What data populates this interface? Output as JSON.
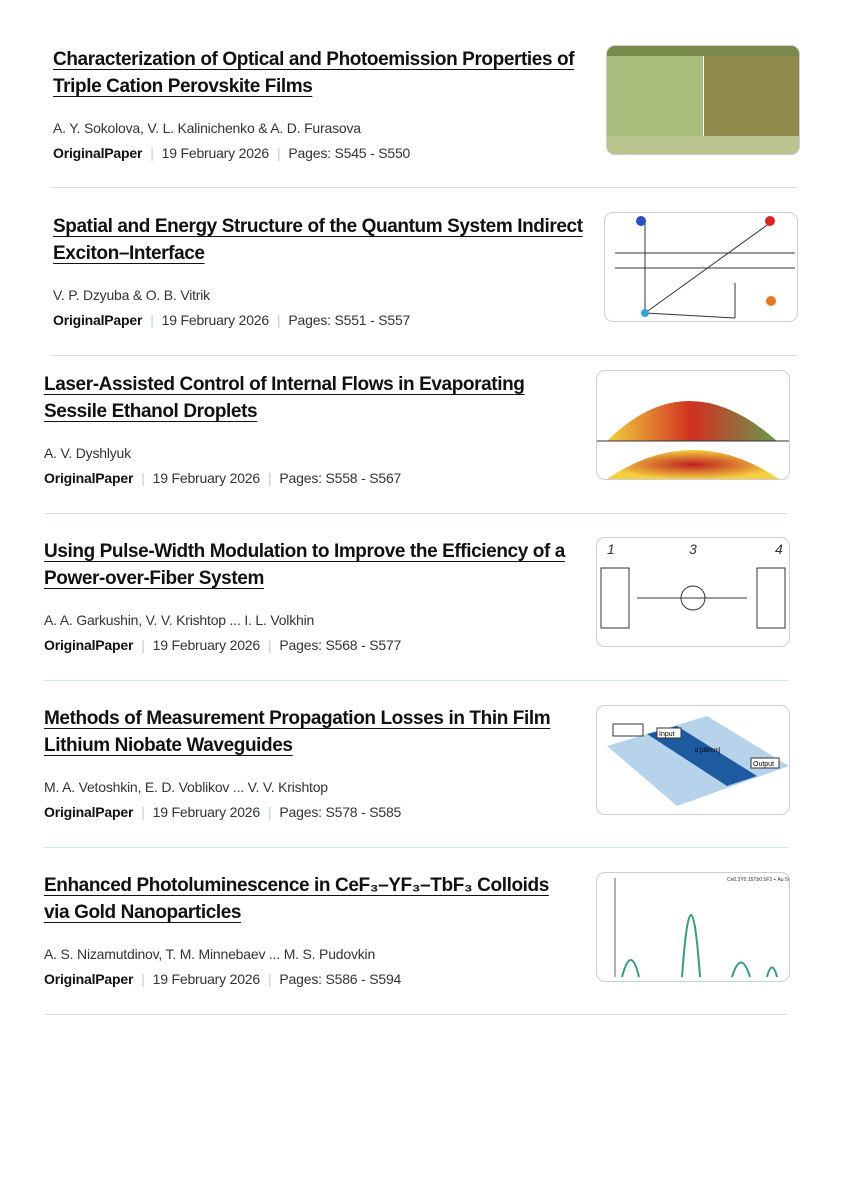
{
  "articles": [
    {
      "title": "Characterization of Optical and Photoemission Properties of Triple Cation Perovskite Films",
      "authors": "A. Y. Sokolova, V. L. Kalinichenko & A. D. Furasova",
      "type": "OriginalPaper",
      "date": "19 February 2026",
      "pages": "Pages: S545 - S550"
    },
    {
      "title": "Spatial and Energy Structure of the Quantum System Indirect Exciton–Interface",
      "authors": "V. P. Dzyuba & O. B. Vitrik",
      "type": "OriginalPaper",
      "date": "19 February 2026",
      "pages": "Pages: S551 - S557"
    },
    {
      "title": "Laser-Assisted Control of Internal Flows in Evaporating Sessile Ethanol Droplets",
      "authors": "A. V. Dyshlyuk",
      "type": "OriginalPaper",
      "date": "19 February 2026",
      "pages": "Pages: S558 - S567"
    },
    {
      "title": "Using Pulse-Width Modulation to Improve the Efficiency of a Power-over-Fiber System",
      "authors": "A. A. Garkushin, V. V. Krishtop ... I. L. Volkhin",
      "type": "OriginalPaper",
      "date": "19 February 2026",
      "pages": "Pages: S568 - S577"
    },
    {
      "title": "Methods of Measurement Propagation Losses in Thin Film Lithium Niobate Waveguides",
      "authors": "M. A. Vetoshkin, E. D. Voblikov ... V. V. Krishtop",
      "type": "OriginalPaper",
      "date": "19 February 2026",
      "pages": "Pages: S578 - S585"
    },
    {
      "title": "Enhanced Photoluminescence in CeF₃–YF₃–TbF₃ Colloids via Gold Nanoparticles",
      "authors": "A. S. Nizamutdinov, T. M. Minnebaev ... M. S. Pudovkin",
      "type": "OriginalPaper",
      "date": "19 February 2026",
      "pages": "Pages: S586 - S594"
    }
  ],
  "thumb_labels": {
    "fig4": [
      "1",
      "3",
      "4"
    ],
    "fig5": [
      "Input",
      "Output",
      "α [dB/cm]"
    ]
  }
}
